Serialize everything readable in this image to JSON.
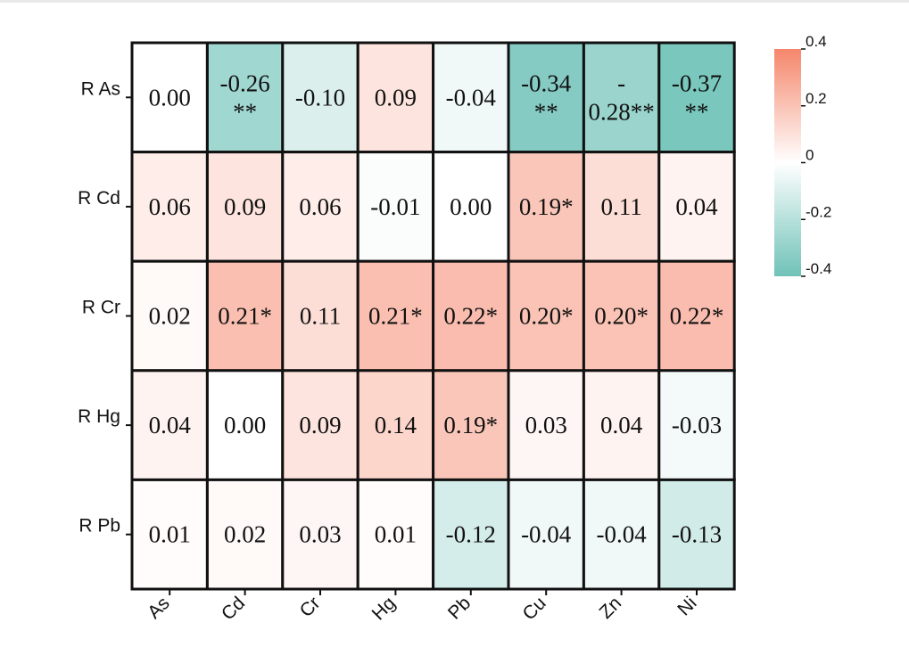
{
  "chart_data": {
    "type": "heatmap",
    "title": "",
    "row_labels": [
      "R As",
      "R Cd",
      "R Cr",
      "R Hg",
      "R Pb"
    ],
    "col_labels": [
      "As",
      "Cd",
      "Cr",
      "Hg",
      "Pb",
      "Cu",
      "Zn",
      "Ni"
    ],
    "values": [
      [
        0.0,
        -0.26,
        -0.1,
        0.09,
        -0.04,
        -0.34,
        -0.28,
        -0.37
      ],
      [
        0.06,
        0.09,
        0.06,
        -0.01,
        0.0,
        0.19,
        0.11,
        0.04
      ],
      [
        0.02,
        0.21,
        0.11,
        0.21,
        0.22,
        0.2,
        0.2,
        0.22
      ],
      [
        0.04,
        0.0,
        0.09,
        0.14,
        0.19,
        0.03,
        0.04,
        -0.03
      ],
      [
        0.01,
        0.02,
        0.03,
        0.01,
        -0.12,
        -0.04,
        -0.04,
        -0.13
      ]
    ],
    "cell_text": [
      [
        [
          "0.00"
        ],
        [
          "-0.26",
          "**"
        ],
        [
          "-0.10"
        ],
        [
          "0.09"
        ],
        [
          "-0.04"
        ],
        [
          "-0.34",
          "**"
        ],
        [
          "-",
          "0.28**"
        ],
        [
          "-0.37",
          "**"
        ]
      ],
      [
        [
          "0.06"
        ],
        [
          "0.09"
        ],
        [
          "0.06"
        ],
        [
          "-0.01"
        ],
        [
          "0.00"
        ],
        [
          "0.19*"
        ],
        [
          "0.11"
        ],
        [
          "0.04"
        ]
      ],
      [
        [
          "0.02"
        ],
        [
          "0.21*"
        ],
        [
          "0.11"
        ],
        [
          "0.21*"
        ],
        [
          "0.22*"
        ],
        [
          "0.20*"
        ],
        [
          "0.20*"
        ],
        [
          "0.22*"
        ]
      ],
      [
        [
          "0.04"
        ],
        [
          "0.00"
        ],
        [
          "0.09"
        ],
        [
          "0.14"
        ],
        [
          "0.19*"
        ],
        [
          "0.03"
        ],
        [
          "0.04"
        ],
        [
          "-0.03"
        ]
      ],
      [
        [
          "0.01"
        ],
        [
          "0.02"
        ],
        [
          "0.03"
        ],
        [
          "0.01"
        ],
        [
          "-0.12"
        ],
        [
          "-0.04"
        ],
        [
          "-0.04"
        ],
        [
          "-0.13"
        ]
      ]
    ],
    "colorbar": {
      "range": [
        -0.4,
        0.4
      ],
      "ticks": [
        0.4,
        0.2,
        0,
        -0.2,
        -0.4
      ],
      "tick_labels": [
        "0.4",
        "0.2",
        "0",
        "-0.2",
        "-0.4"
      ],
      "colors": {
        "high": "#f5866b",
        "mid": "#ffffff",
        "low": "#6fc2b8"
      }
    }
  }
}
